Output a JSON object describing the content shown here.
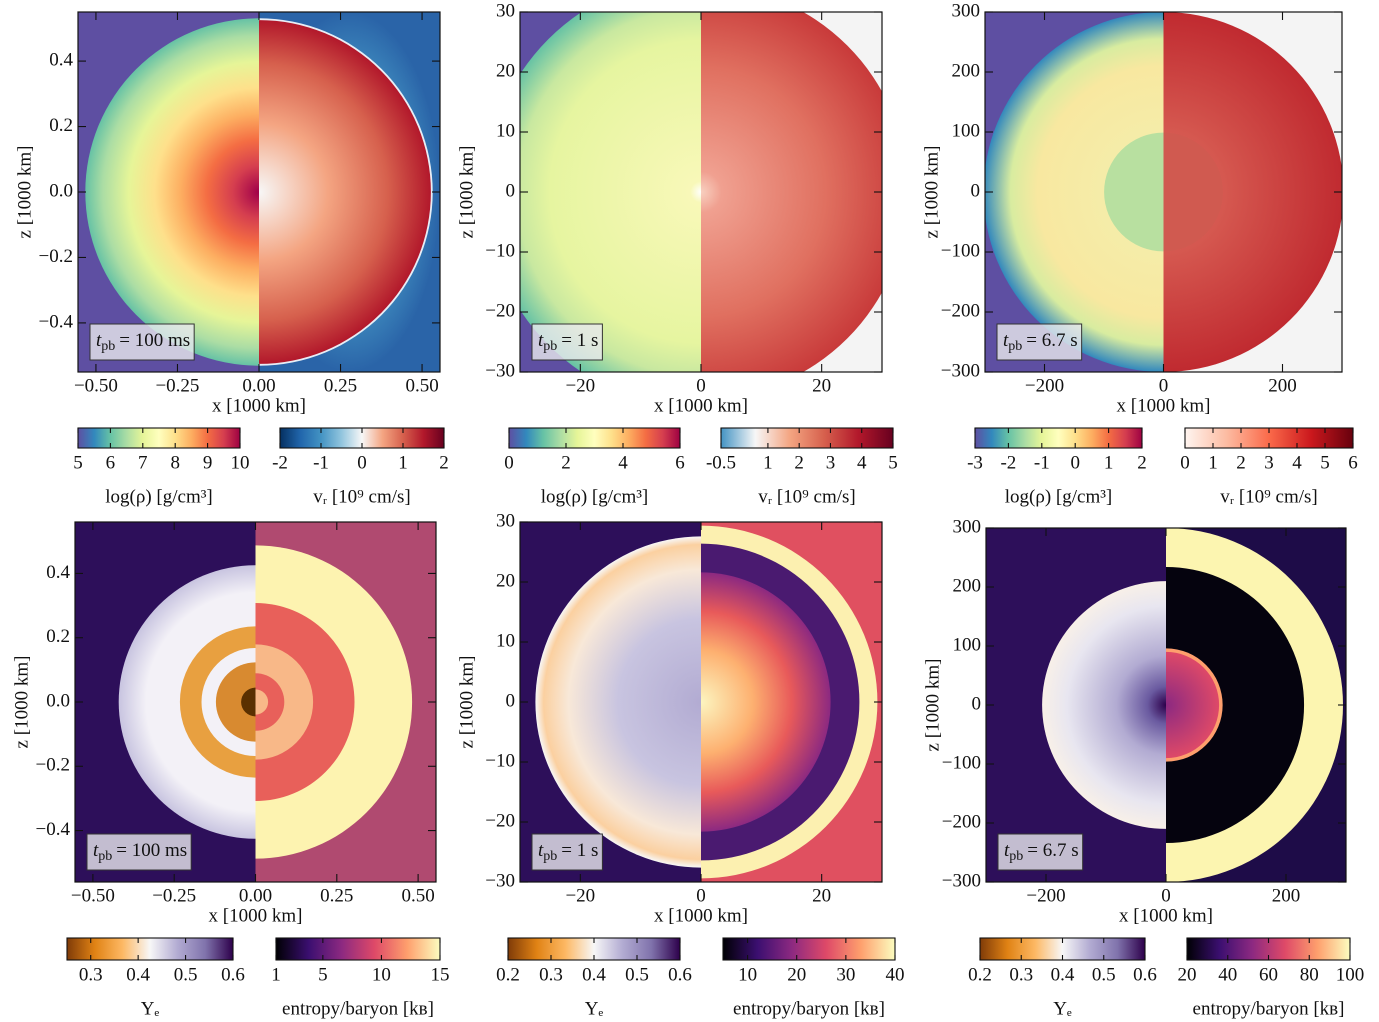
{
  "chart_data": [
    {
      "type": "image",
      "xlabel": "x [1000 km]",
      "ylabel": "z [1000 km]",
      "annotation": {
        "symbol": "t",
        "subscript": "pb",
        "text": "= 100 ms"
      },
      "xlim": [
        -0.555,
        0.555
      ],
      "ylim": [
        -0.55,
        0.55
      ],
      "xticks": [
        {
          "value": -0.5,
          "label": "−0.50"
        },
        {
          "value": -0.25,
          "label": "−0.25"
        },
        {
          "value": 0,
          "label": "0.00"
        },
        0.25,
        {
          "value": 0.5,
          "label": "0.50"
        }
      ],
      "yticks": [
        {
          "value": -0.4,
          "label": "−0.4"
        },
        {
          "value": -0.2,
          "label": "−0.2"
        },
        {
          "value": 0,
          "label": "0.0"
        },
        0.2,
        0.4
      ],
      "colorbars": [
        {
          "label": "log(ρ) [g/cm³]",
          "lim": [
            5,
            10
          ],
          "ticks": [
            5,
            6,
            7,
            8,
            9,
            10
          ],
          "colors": [
            "#5e4fa2",
            "#3288bd",
            "#66c2a5",
            "#abdda4",
            "#e6f598",
            "#ffffbf",
            "#fee08b",
            "#fdae61",
            "#f46d43",
            "#d53e4f",
            "#9e0142"
          ]
        },
        {
          "label": "vᵣ [10⁹ cm/s]",
          "lim": [
            -2,
            2
          ],
          "ticks": [
            -2,
            -1,
            0,
            1,
            2
          ],
          "colors": [
            "#053061",
            "#2166ac",
            "#4393c3",
            "#92c5de",
            "#f7f7f7",
            "#f4a582",
            "#d6604d",
            "#b2182b",
            "#67001f"
          ]
        }
      ]
    },
    {
      "type": "image",
      "xlabel": "x [1000 km]",
      "ylabel": "z [1000 km]",
      "annotation": {
        "symbol": "t",
        "subscript": "pb",
        "text": "= 1 s"
      },
      "xlim": [
        -30,
        30
      ],
      "ylim": [
        -30,
        30
      ],
      "xticks": [
        {
          "value": -20,
          "label": "−20"
        },
        0,
        20
      ],
      "yticks": [
        {
          "value": -30,
          "label": "−30"
        },
        {
          "value": -20,
          "label": "−20"
        },
        {
          "value": -10,
          "label": "−10"
        },
        0,
        10,
        20,
        30
      ],
      "colorbars": [
        {
          "label": "log(ρ) [g/cm³]",
          "lim": [
            0,
            6
          ],
          "ticks": [
            0,
            2,
            4,
            6
          ],
          "colors": [
            "#5e4fa2",
            "#3288bd",
            "#66c2a5",
            "#abdda4",
            "#e6f598",
            "#ffffbf",
            "#fee08b",
            "#fdae61",
            "#f46d43",
            "#d53e4f",
            "#9e0142"
          ]
        },
        {
          "label": "vᵣ [10⁹ cm/s]",
          "lim": [
            -0.5,
            5
          ],
          "ticks": [
            -0.5,
            1,
            2,
            3,
            4,
            5
          ],
          "colors": [
            "#4393c3",
            "#f7f7f7",
            "#f4a582",
            "#d6604d",
            "#b2182b",
            "#67001f"
          ]
        }
      ]
    },
    {
      "type": "image",
      "xlabel": "x [1000 km]",
      "ylabel": "z [1000 km]",
      "annotation": {
        "symbol": "t",
        "subscript": "pb",
        "text": "= 6.7 s"
      },
      "xlim": [
        -300,
        300
      ],
      "ylim": [
        -300,
        300
      ],
      "xticks": [
        {
          "value": -200,
          "label": "−200"
        },
        0,
        200
      ],
      "yticks": [
        {
          "value": -300,
          "label": "−300"
        },
        {
          "value": -200,
          "label": "−200"
        },
        {
          "value": -100,
          "label": "−100"
        },
        0,
        100,
        200,
        300
      ],
      "colorbars": [
        {
          "label": "log(ρ) [g/cm³]",
          "lim": [
            -3,
            2
          ],
          "ticks": [
            -3,
            -2,
            -1,
            0,
            1,
            2
          ],
          "colors": [
            "#5e4fa2",
            "#3288bd",
            "#66c2a5",
            "#abdda4",
            "#e6f598",
            "#ffffbf",
            "#fee08b",
            "#fdae61",
            "#f46d43",
            "#d53e4f",
            "#9e0142"
          ]
        },
        {
          "label": "vᵣ [10⁹ cm/s]",
          "lim": [
            0,
            6
          ],
          "ticks": [
            0,
            1,
            2,
            3,
            4,
            5,
            6
          ],
          "colors": [
            "#fff5f0",
            "#fcbba1",
            "#fb6a4a",
            "#cb181d",
            "#67000d"
          ]
        }
      ]
    },
    {
      "type": "image",
      "xlabel": "x [1000 km]",
      "ylabel": "z [1000 km]",
      "annotation": {
        "symbol": "t",
        "subscript": "pb",
        "text": "= 100 ms"
      },
      "xlim": [
        -0.555,
        0.555
      ],
      "ylim": [
        -0.56,
        0.56
      ],
      "xticks": [
        {
          "value": -0.5,
          "label": "−0.50"
        },
        {
          "value": -0.25,
          "label": "−0.25"
        },
        {
          "value": 0,
          "label": "0.00"
        },
        0.25,
        {
          "value": 0.5,
          "label": "0.50"
        }
      ],
      "yticks": [
        {
          "value": -0.4,
          "label": "−0.4"
        },
        {
          "value": -0.2,
          "label": "−0.2"
        },
        {
          "value": 0,
          "label": "0.0"
        },
        0.2,
        0.4
      ],
      "colorbars": [
        {
          "label": "Yₑ",
          "lim": [
            0.25,
            0.6
          ],
          "ticks": [
            0.3,
            0.4,
            0.5,
            0.6
          ],
          "colors": [
            "#7f3b08",
            "#e08214",
            "#fdb863",
            "#f7f7f7",
            "#b2abd2",
            "#8073ac",
            "#2d004b"
          ]
        },
        {
          "label": "entropy/baryon [kʙ]",
          "lim": [
            1,
            15
          ],
          "ticks": [
            1,
            5,
            10,
            15
          ],
          "colors": [
            "#000004",
            "#3b0f70",
            "#8c2981",
            "#de4968",
            "#fe9f6d",
            "#fcfdbf"
          ]
        }
      ]
    },
    {
      "type": "image",
      "xlabel": "x [1000 km]",
      "ylabel": "z [1000 km]",
      "annotation": {
        "symbol": "t",
        "subscript": "pb",
        "text": "= 1 s"
      },
      "xlim": [
        -30,
        30
      ],
      "ylim": [
        -30,
        30
      ],
      "xticks": [
        {
          "value": -20,
          "label": "−20"
        },
        0,
        20
      ],
      "yticks": [
        {
          "value": -30,
          "label": "−30"
        },
        {
          "value": -20,
          "label": "−20"
        },
        {
          "value": -10,
          "label": "−10"
        },
        0,
        10,
        20,
        30
      ],
      "colorbars": [
        {
          "label": "Yₑ",
          "lim": [
            0.2,
            0.6
          ],
          "ticks": [
            0.2,
            0.3,
            0.4,
            0.5,
            0.6
          ],
          "colors": [
            "#7f3b08",
            "#e08214",
            "#fdb863",
            "#f7f7f7",
            "#b2abd2",
            "#8073ac",
            "#2d004b"
          ]
        },
        {
          "label": "entropy/baryon [kʙ]",
          "lim": [
            5,
            40
          ],
          "ticks": [
            10,
            20,
            30,
            40
          ],
          "colors": [
            "#000004",
            "#3b0f70",
            "#8c2981",
            "#de4968",
            "#fe9f6d",
            "#fcfdbf"
          ]
        }
      ]
    },
    {
      "type": "image",
      "xlabel": "x [1000 km]",
      "ylabel": "z [1000 km]",
      "annotation": {
        "symbol": "t",
        "subscript": "pb",
        "text": "= 6.7 s"
      },
      "xlim": [
        -300,
        300
      ],
      "ylim": [
        -300,
        300
      ],
      "xticks": [
        {
          "value": -200,
          "label": "−200"
        },
        0,
        200
      ],
      "yticks": [
        {
          "value": -300,
          "label": "−300"
        },
        {
          "value": -200,
          "label": "−200"
        },
        {
          "value": -100,
          "label": "−100"
        },
        0,
        100,
        200,
        300
      ],
      "colorbars": [
        {
          "label": "Yₑ",
          "lim": [
            0.2,
            0.6
          ],
          "ticks": [
            0.2,
            0.3,
            0.4,
            0.5,
            0.6
          ],
          "colors": [
            "#7f3b08",
            "#e08214",
            "#fdb863",
            "#f7f7f7",
            "#b2abd2",
            "#8073ac",
            "#2d004b"
          ]
        },
        {
          "label": "entropy/baryon [kʙ]",
          "lim": [
            20,
            100
          ],
          "ticks": [
            20,
            40,
            60,
            80,
            100
          ],
          "colors": [
            "#000004",
            "#3b0f70",
            "#8c2981",
            "#de4968",
            "#fe9f6d",
            "#fcfdbf"
          ]
        }
      ]
    }
  ]
}
